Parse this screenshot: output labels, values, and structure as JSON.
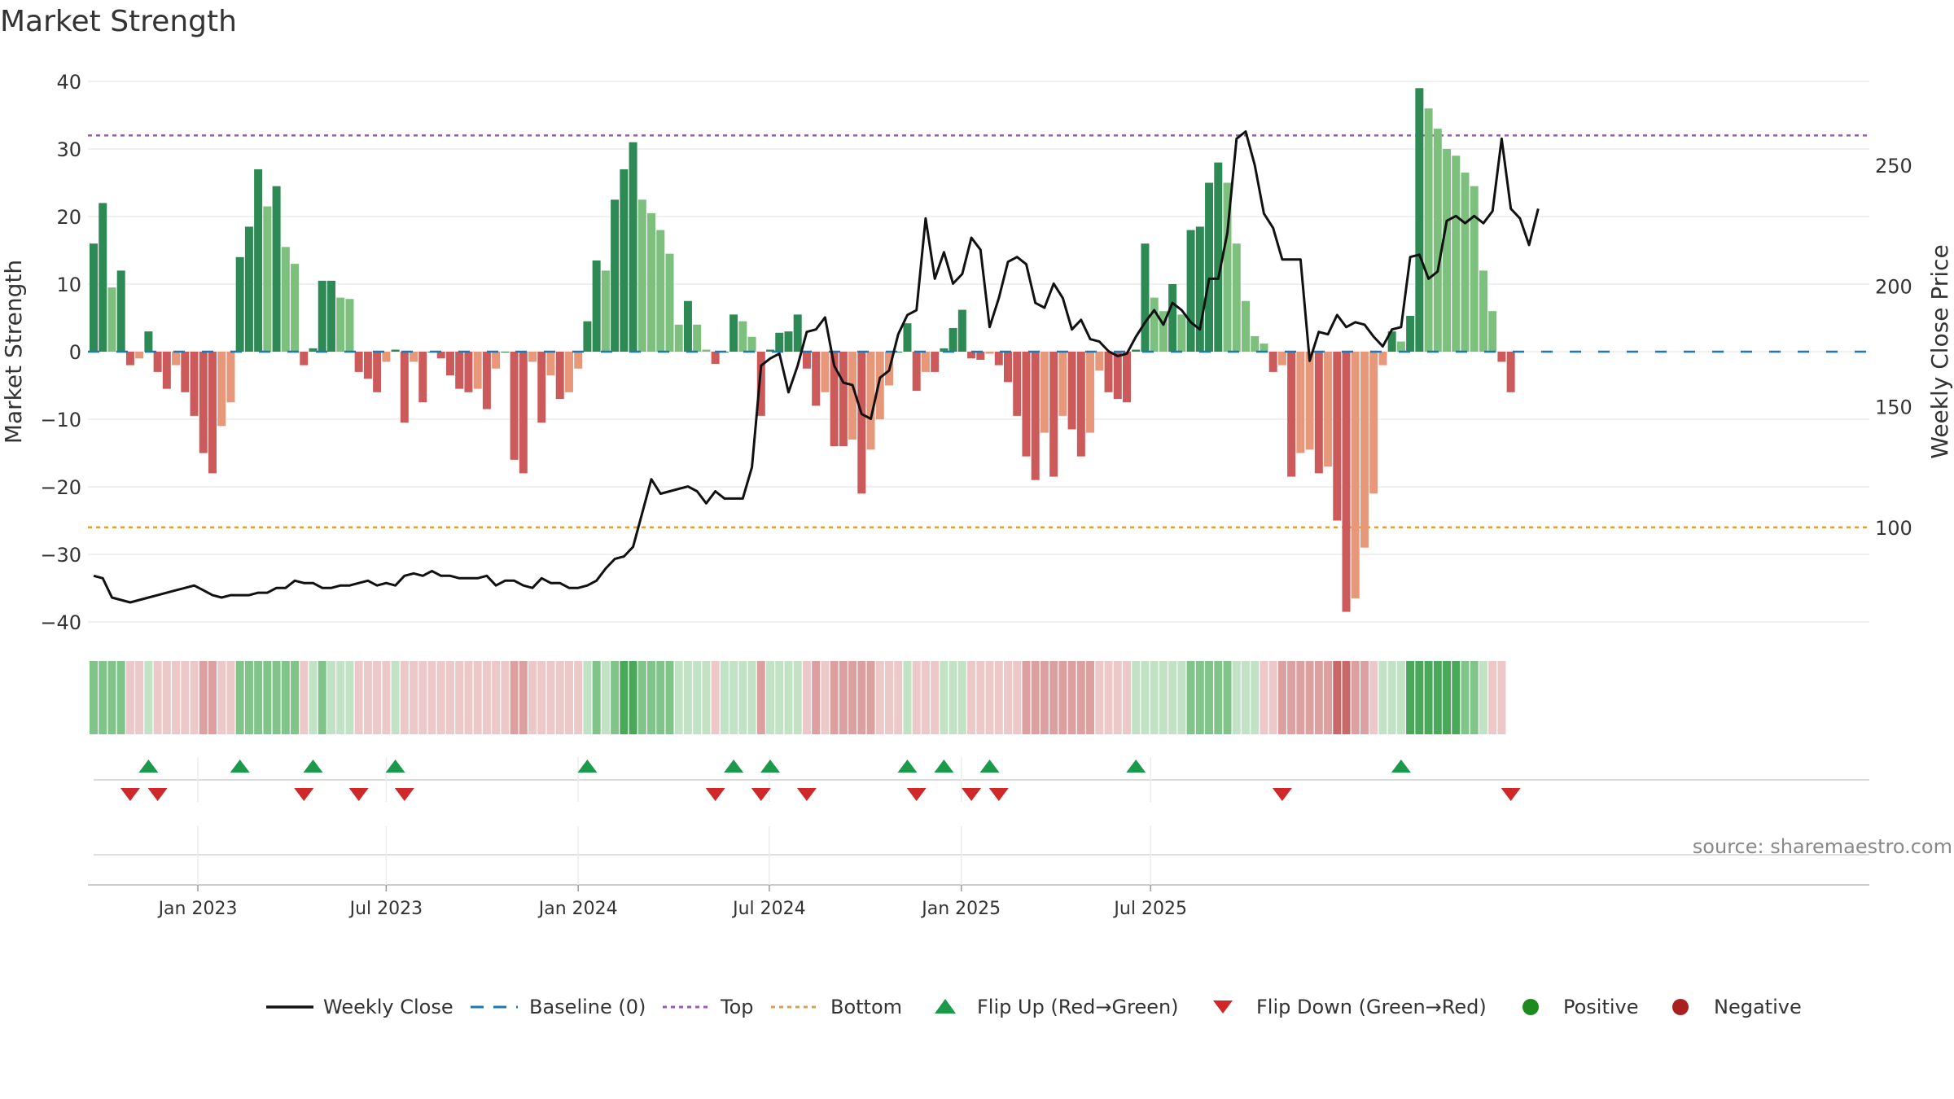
{
  "title": "Market Strength",
  "source": "source: sharemaestro.com",
  "chart_data": {
    "type": "bar+line",
    "title": "Market Strength",
    "left_axis": {
      "label": "Market Strength",
      "ylim": [
        -44,
        42
      ],
      "ticks": [
        40,
        30,
        20,
        10,
        0,
        -10,
        -20,
        -30,
        -40
      ]
    },
    "right_axis": {
      "label": "Weekly Close Price",
      "ylim": [
        45,
        283
      ],
      "ticks": [
        100,
        150,
        200,
        250
      ]
    },
    "x_ticks": [
      "Jan 2023",
      "Jul 2023",
      "Jan 2024",
      "Jul 2024",
      "Jan 2025",
      "Jul 2025"
    ],
    "top_level": 32,
    "bottom_level": -26,
    "strength": [
      16,
      22,
      9.5,
      12,
      -2,
      -1,
      3,
      -3,
      -5.5,
      -2,
      -6,
      -9.5,
      -15,
      -18,
      -11,
      -7.5,
      14,
      18.5,
      27,
      21.5,
      24.5,
      15.5,
      13,
      -2,
      0.5,
      10.5,
      10.5,
      8,
      7.8,
      -3,
      -4,
      -6,
      -1.5,
      0.3,
      -10.5,
      -1.5,
      -7.5,
      0,
      -1,
      -3.5,
      -5.5,
      -6,
      -5.5,
      -8.5,
      -2.5,
      0,
      -16,
      -18,
      -1.5,
      -10.5,
      -3.5,
      -7,
      -6,
      -2.5,
      4.5,
      13.5,
      12,
      22.5,
      27,
      31,
      22.5,
      20.5,
      18,
      14.5,
      4,
      7.5,
      4,
      0.3,
      -1.8,
      0,
      5.5,
      4.5,
      2.2,
      -9.5,
      0.3,
      2.8,
      3,
      5.5,
      -2.5,
      -8,
      -6,
      -14,
      -14,
      -13,
      -21,
      -14.5,
      -10,
      -5,
      0,
      4.2,
      -5.8,
      -3,
      -3,
      0.5,
      3.5,
      6.2,
      -1,
      -1.2,
      -0.3,
      -2,
      -4.5,
      -9.5,
      -15.5,
      -19,
      -12,
      -18.5,
      -9.5,
      -11.5,
      -15.5,
      -12,
      -2.8,
      -6,
      -7,
      -7.5,
      0.3,
      16,
      8,
      6,
      10,
      5.5,
      18,
      18.5,
      25,
      28,
      25,
      16,
      7.5,
      2.3,
      1.2,
      -3,
      -2,
      -18.5,
      -15,
      -14.5,
      -18,
      -17,
      -25,
      -38.5,
      -36.5,
      -29,
      -21,
      -2,
      3,
      1.5,
      5.3,
      39,
      36,
      33,
      30,
      29,
      26.5,
      24.5,
      12,
      6,
      -1.5,
      -6
    ],
    "weekly_close": [
      80,
      79,
      71,
      70,
      69,
      70,
      71,
      72,
      73,
      74,
      75,
      76,
      74,
      72,
      71,
      72,
      72,
      72,
      73,
      73,
      75,
      75,
      78,
      77,
      77,
      75,
      75,
      76,
      76,
      77,
      78,
      76,
      77,
      76,
      80,
      81,
      80,
      82,
      80,
      80,
      79,
      79,
      79,
      80,
      76,
      78,
      78,
      76,
      75,
      79,
      77,
      77,
      75,
      75,
      76,
      78,
      83,
      87,
      88,
      92,
      106,
      120,
      114,
      115,
      116,
      117,
      115,
      110,
      115,
      112,
      112,
      112,
      125,
      167,
      170,
      172,
      156,
      167,
      181,
      182,
      187,
      167,
      160,
      159,
      147,
      145,
      162,
      165,
      180,
      188,
      190,
      228,
      203,
      214,
      201,
      205,
      220,
      215,
      183,
      195,
      210,
      212,
      209,
      193,
      191,
      201,
      195,
      182,
      186,
      178,
      177,
      173,
      171,
      172,
      179,
      185,
      190,
      184,
      193,
      190,
      185,
      182,
      203,
      203,
      222,
      261,
      264,
      250,
      230,
      224,
      211,
      211,
      211,
      169,
      181,
      180,
      188,
      183,
      185,
      184,
      179,
      175,
      182,
      183,
      212,
      213,
      203,
      206,
      227,
      229,
      226,
      229,
      226,
      231,
      261,
      232,
      228,
      217,
      232
    ],
    "strip_levels": [
      2,
      2,
      2,
      2,
      -1,
      -1,
      1,
      -1,
      -1,
      -1,
      -1,
      -1,
      -2,
      -2,
      -1,
      -1,
      2,
      2,
      2,
      2,
      2,
      2,
      2,
      -1,
      1,
      2,
      1,
      1,
      1,
      -1,
      -1,
      -1,
      -1,
      1,
      -1,
      -1,
      -1,
      -1,
      -1,
      -1,
      -1,
      -1,
      -1,
      -1,
      -1,
      -1,
      -2,
      -2,
      -1,
      -1,
      -1,
      -1,
      -1,
      -1,
      1,
      2,
      1,
      2,
      3,
      3,
      2,
      2,
      2,
      2,
      1,
      1,
      1,
      1,
      -1,
      1,
      1,
      1,
      1,
      -2,
      1,
      1,
      1,
      1,
      -1,
      -2,
      -1,
      -2,
      -2,
      -2,
      -2,
      -2,
      -1,
      -1,
      -1,
      1,
      -1,
      -1,
      -1,
      1,
      1,
      1,
      -1,
      -1,
      -1,
      -1,
      -1,
      -1,
      -2,
      -2,
      -2,
      -2,
      -2,
      -2,
      -2,
      -2,
      -1,
      -1,
      -1,
      -1,
      1,
      1,
      1,
      1,
      1,
      1,
      2,
      2,
      2,
      2,
      2,
      1,
      1,
      1,
      -1,
      -1,
      -2,
      -2,
      -2,
      -2,
      -2,
      -2,
      -3,
      -3,
      -2,
      -2,
      -1,
      1,
      1,
      1,
      3,
      3,
      3,
      3,
      3,
      3,
      2,
      2,
      1,
      -1,
      -1
    ],
    "flip_up_weeks": [
      6,
      16,
      24,
      33,
      54,
      70,
      74,
      89,
      93,
      98,
      114,
      143
    ],
    "flip_down_weeks": [
      4,
      7,
      23,
      29,
      34,
      68,
      73,
      78,
      90,
      96,
      99,
      130,
      155
    ],
    "legend": [
      "Weekly Close",
      "Baseline (0)",
      "Top",
      "Bottom",
      "Flip Up (Red→Green)",
      "Flip Down (Green→Red)",
      "Positive",
      "Negative"
    ],
    "colors": {
      "strong_green": "#2e8a55",
      "light_green": "#7dbf7d",
      "strong_red": "#cc5a5a",
      "light_red": "#e8987a",
      "line": "#111111",
      "baseline": "#1f77b4",
      "top": "#9b59b6",
      "bottom": "#e0a040",
      "flip_up": "#1a9a4a",
      "flip_down": "#d02828",
      "positive": "#1e8a1e",
      "negative": "#a82020"
    }
  }
}
